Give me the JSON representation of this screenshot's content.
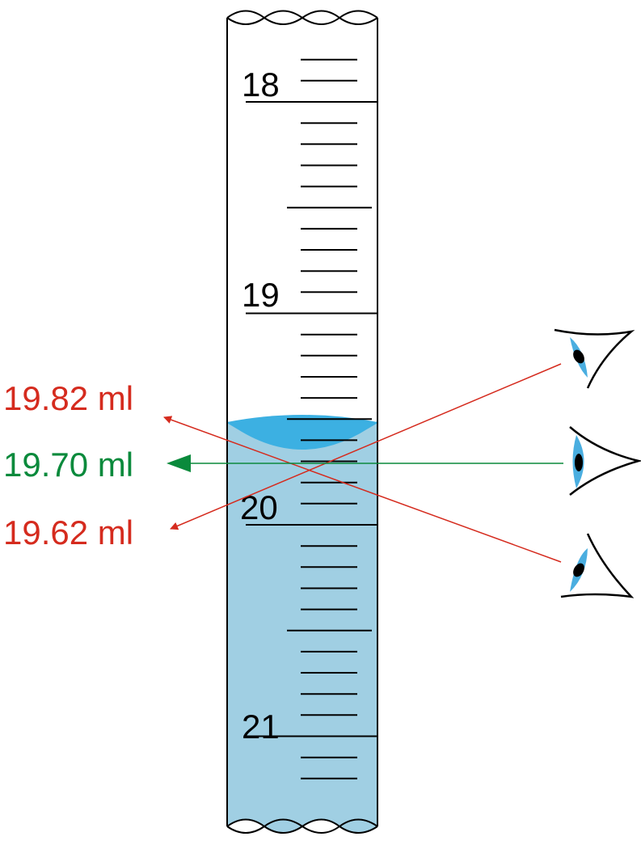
{
  "scale": {
    "major_labels": [
      "18",
      "19",
      "20",
      "21"
    ],
    "minor_divisions_per_unit": 10
  },
  "readings": [
    {
      "text": "19.82 ml",
      "view": "from-below",
      "color": "#d52b1e"
    },
    {
      "text": "19.70 ml",
      "view": "eye-level",
      "color": "#0a8a3c"
    },
    {
      "text": "19.62 ml",
      "view": "from-above",
      "color": "#d52b1e"
    }
  ],
  "colors": {
    "liquid": "#a0cfe3",
    "meniscus": "#3cb0e2",
    "outline": "#000000",
    "eye_iris": "#4aaee0"
  },
  "icons": [
    "eye-above-icon",
    "eye-level-icon",
    "eye-below-icon"
  ]
}
